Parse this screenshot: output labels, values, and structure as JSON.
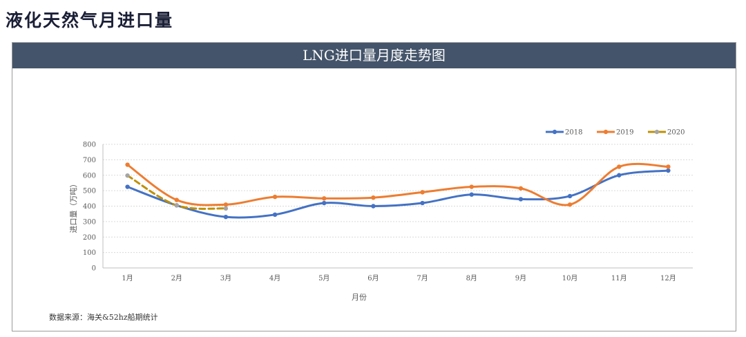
{
  "page": {
    "title": "液化天然气月进口量",
    "source": "数据来源：海关&52hz船期统计"
  },
  "colors": {
    "header_bg": "#44546a",
    "series_2018": "#4472c4",
    "series_2019": "#ed7d31",
    "series_2020": "#bf9000",
    "marker_2020": "#a5a5a5",
    "grid": "#d9d9d9"
  },
  "chart_data": {
    "type": "line",
    "title": "LNG进口量月度走势图",
    "xlabel": "月份",
    "ylabel": "进口量（万吨）",
    "ylim": [
      0,
      800
    ],
    "yticks": [
      0,
      100,
      200,
      300,
      400,
      500,
      600,
      700,
      800
    ],
    "grid": "horizontal dotted",
    "legend_position": "top-right",
    "smooth": true,
    "categories": [
      "1月",
      "2月",
      "3月",
      "4月",
      "5月",
      "6月",
      "7月",
      "8月",
      "9月",
      "10月",
      "11月",
      "12月"
    ],
    "series": [
      {
        "name": "2018",
        "color": "#4472c4",
        "dash": false,
        "values": [
          525,
          405,
          330,
          345,
          420,
          400,
          420,
          475,
          445,
          465,
          600,
          630
        ]
      },
      {
        "name": "2019",
        "color": "#ed7d31",
        "dash": false,
        "values": [
          668,
          440,
          410,
          460,
          450,
          455,
          490,
          525,
          515,
          410,
          655,
          655
        ]
      },
      {
        "name": "2020",
        "color": "#bf9000",
        "marker_color": "#a5a5a5",
        "dash": true,
        "values": [
          598,
          405,
          385,
          null,
          null,
          null,
          null,
          null,
          null,
          null,
          null,
          null
        ]
      }
    ]
  }
}
